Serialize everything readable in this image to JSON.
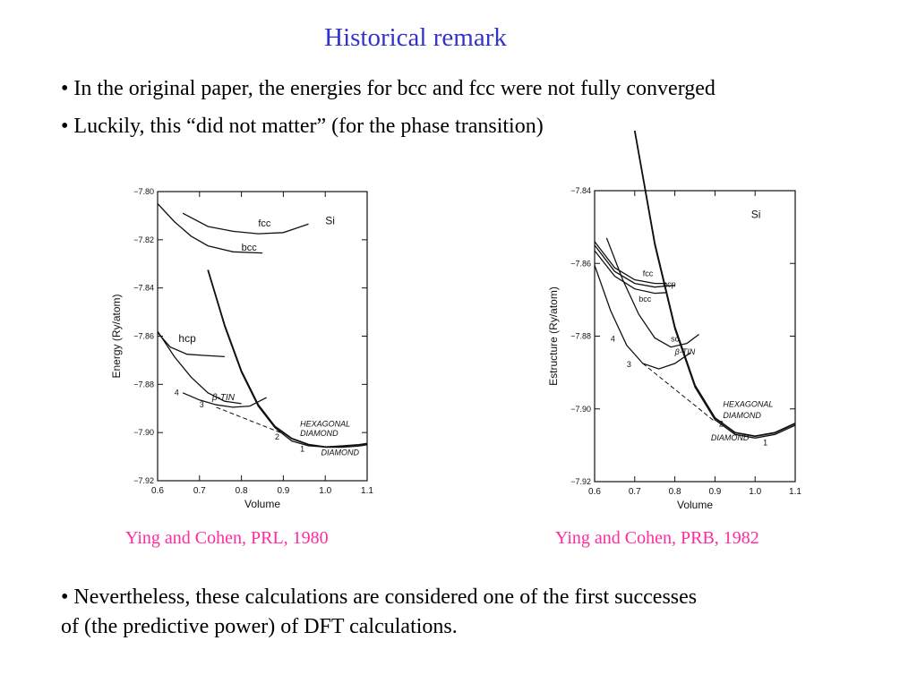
{
  "slide": {
    "title": "Historical remark",
    "bullets": [
      "• In the original paper, the energies for bcc and fcc were not fully converged",
      "• Luckily, this “did not matter” (for the phase transition)"
    ],
    "conclusion_line1": "• Nevertheless, these calculations are considered one of the first successes",
    "conclusion_line2": "of (the predictive power) of DFT calculations.",
    "captions": [
      "Ying and Cohen, PRL, 1980",
      "Ying and Cohen, PRB, 1982"
    ]
  },
  "chart_data": [
    {
      "type": "line",
      "xlabel": "Volume",
      "ylabel": "Energy (Ry/atom)",
      "xlim": [
        0.6,
        1.1
      ],
      "ylim": [
        -7.92,
        -7.8
      ],
      "xticks": [
        "0.6",
        "0.7",
        "0.8",
        "0.9",
        "1.0",
        "1.1"
      ],
      "yticks": [
        "−7.80",
        "−7.82",
        "−7.84",
        "−7.86",
        "−7.88",
        "−7.90",
        "−7.92"
      ],
      "element_label": "Si",
      "series": [
        {
          "name": "fcc",
          "x": [
            0.66,
            0.72,
            0.78,
            0.84,
            0.9,
            0.96
          ],
          "y": [
            -7.809,
            -7.8145,
            -7.8165,
            -7.8175,
            -7.817,
            -7.8135
          ]
        },
        {
          "name": "bcc",
          "x": [
            0.6,
            0.64,
            0.68,
            0.72,
            0.78,
            0.85
          ],
          "y": [
            -7.805,
            -7.8125,
            -7.8185,
            -7.8225,
            -7.825,
            -7.8255
          ]
        },
        {
          "name": "hcp",
          "x": [
            0.6,
            0.63,
            0.67,
            0.71,
            0.76
          ],
          "y": [
            -7.8585,
            -7.8645,
            -7.8675,
            -7.868,
            -7.8685
          ]
        },
        {
          "name": "β-TIN",
          "x": [
            0.66,
            0.7,
            0.74,
            0.78,
            0.82,
            0.86
          ],
          "y": [
            -7.8835,
            -7.8865,
            -7.8885,
            -7.8895,
            -7.889,
            -7.8855
          ]
        },
        {
          "name": "DIAMOND",
          "x": [
            0.72,
            0.76,
            0.8,
            0.84,
            0.88,
            0.92,
            0.96,
            1.0,
            1.04,
            1.08,
            1.1
          ],
          "y": [
            -7.8325,
            -7.8555,
            -7.8745,
            -7.8885,
            -7.8975,
            -7.9025,
            -7.905,
            -7.906,
            -7.906,
            -7.9055,
            -7.905
          ]
        },
        {
          "name": "HEXAGONAL DIAMOND",
          "x": [
            0.72,
            0.76,
            0.8,
            0.84,
            0.88,
            0.92,
            0.96,
            1.0,
            1.04,
            1.08,
            1.1
          ],
          "y": [
            -7.8325,
            -7.856,
            -7.875,
            -7.889,
            -7.898,
            -7.9035,
            -7.9055,
            -7.906,
            -7.9055,
            -7.905,
            -7.9045
          ]
        },
        {
          "name": "",
          "x": [
            0.6,
            0.64,
            0.68,
            0.72,
            0.76,
            0.8
          ],
          "y": [
            -7.858,
            -7.8685,
            -7.877,
            -7.8835,
            -7.887,
            -7.888
          ]
        }
      ],
      "annotations": [
        "fcc",
        "bcc",
        "Si",
        "hcp",
        "β-TIN",
        "4",
        "3",
        "HEXAGONAL",
        "DIAMOND",
        "2",
        "1",
        "DIAMOND"
      ]
    },
    {
      "type": "line",
      "xlabel": "Volume",
      "ylabel": "Estructure (Ry/atom)",
      "xlim": [
        0.6,
        1.1
      ],
      "ylim": [
        -7.92,
        -7.84
      ],
      "xticks": [
        "0.6",
        "0.7",
        "0.8",
        "0.9",
        "1.0",
        "1.1"
      ],
      "yticks": [
        "−7.84",
        "−7.86",
        "−7.88",
        "−7.90",
        "−7.92"
      ],
      "element_label": "Si",
      "series": [
        {
          "name": "fcc",
          "x": [
            0.6,
            0.65,
            0.7,
            0.75,
            0.78
          ],
          "y": [
            -7.854,
            -7.8612,
            -7.8645,
            -7.8655,
            -7.8655
          ]
        },
        {
          "name": "hcp",
          "x": [
            0.6,
            0.65,
            0.7,
            0.75,
            0.8
          ],
          "y": [
            -7.855,
            -7.8622,
            -7.8655,
            -7.8665,
            -7.866
          ]
        },
        {
          "name": "bcc",
          "x": [
            0.6,
            0.65,
            0.7,
            0.75,
            0.78
          ],
          "y": [
            -7.8565,
            -7.8635,
            -7.867,
            -7.8682,
            -7.868
          ]
        },
        {
          "name": "sc",
          "x": [
            0.63,
            0.67,
            0.71,
            0.75,
            0.79,
            0.83,
            0.86
          ],
          "y": [
            -7.853,
            -7.8645,
            -7.874,
            -7.8805,
            -7.883,
            -7.882,
            -7.8795
          ]
        },
        {
          "name": "β-TIN",
          "x": [
            0.6,
            0.64,
            0.68,
            0.72,
            0.76,
            0.8,
            0.84
          ],
          "y": [
            -7.8605,
            -7.873,
            -7.8825,
            -7.8875,
            -7.889,
            -7.8875,
            -7.8845
          ]
        },
        {
          "name": "DIAMOND",
          "x": [
            0.7,
            0.75,
            0.8,
            0.85,
            0.9,
            0.95,
            1.0,
            1.05,
            1.1
          ],
          "y": [
            -7.8235,
            -7.8545,
            -7.8775,
            -7.8935,
            -7.9025,
            -7.9065,
            -7.9075,
            -7.9065,
            -7.904
          ]
        },
        {
          "name": "HEXAGONAL DIAMOND",
          "x": [
            0.7,
            0.75,
            0.8,
            0.85,
            0.9,
            0.95,
            1.0,
            1.05,
            1.1
          ],
          "y": [
            -7.8235,
            -7.855,
            -7.878,
            -7.894,
            -7.903,
            -7.907,
            -7.908,
            -7.907,
            -7.9045
          ]
        }
      ],
      "annotations": [
        "Si",
        "fcc",
        "hcp",
        "bcc",
        "sc",
        "4",
        "β-TIN",
        "3",
        "HEXAGONAL",
        "DIAMOND",
        "2",
        "DIAMOND",
        "1"
      ]
    }
  ]
}
